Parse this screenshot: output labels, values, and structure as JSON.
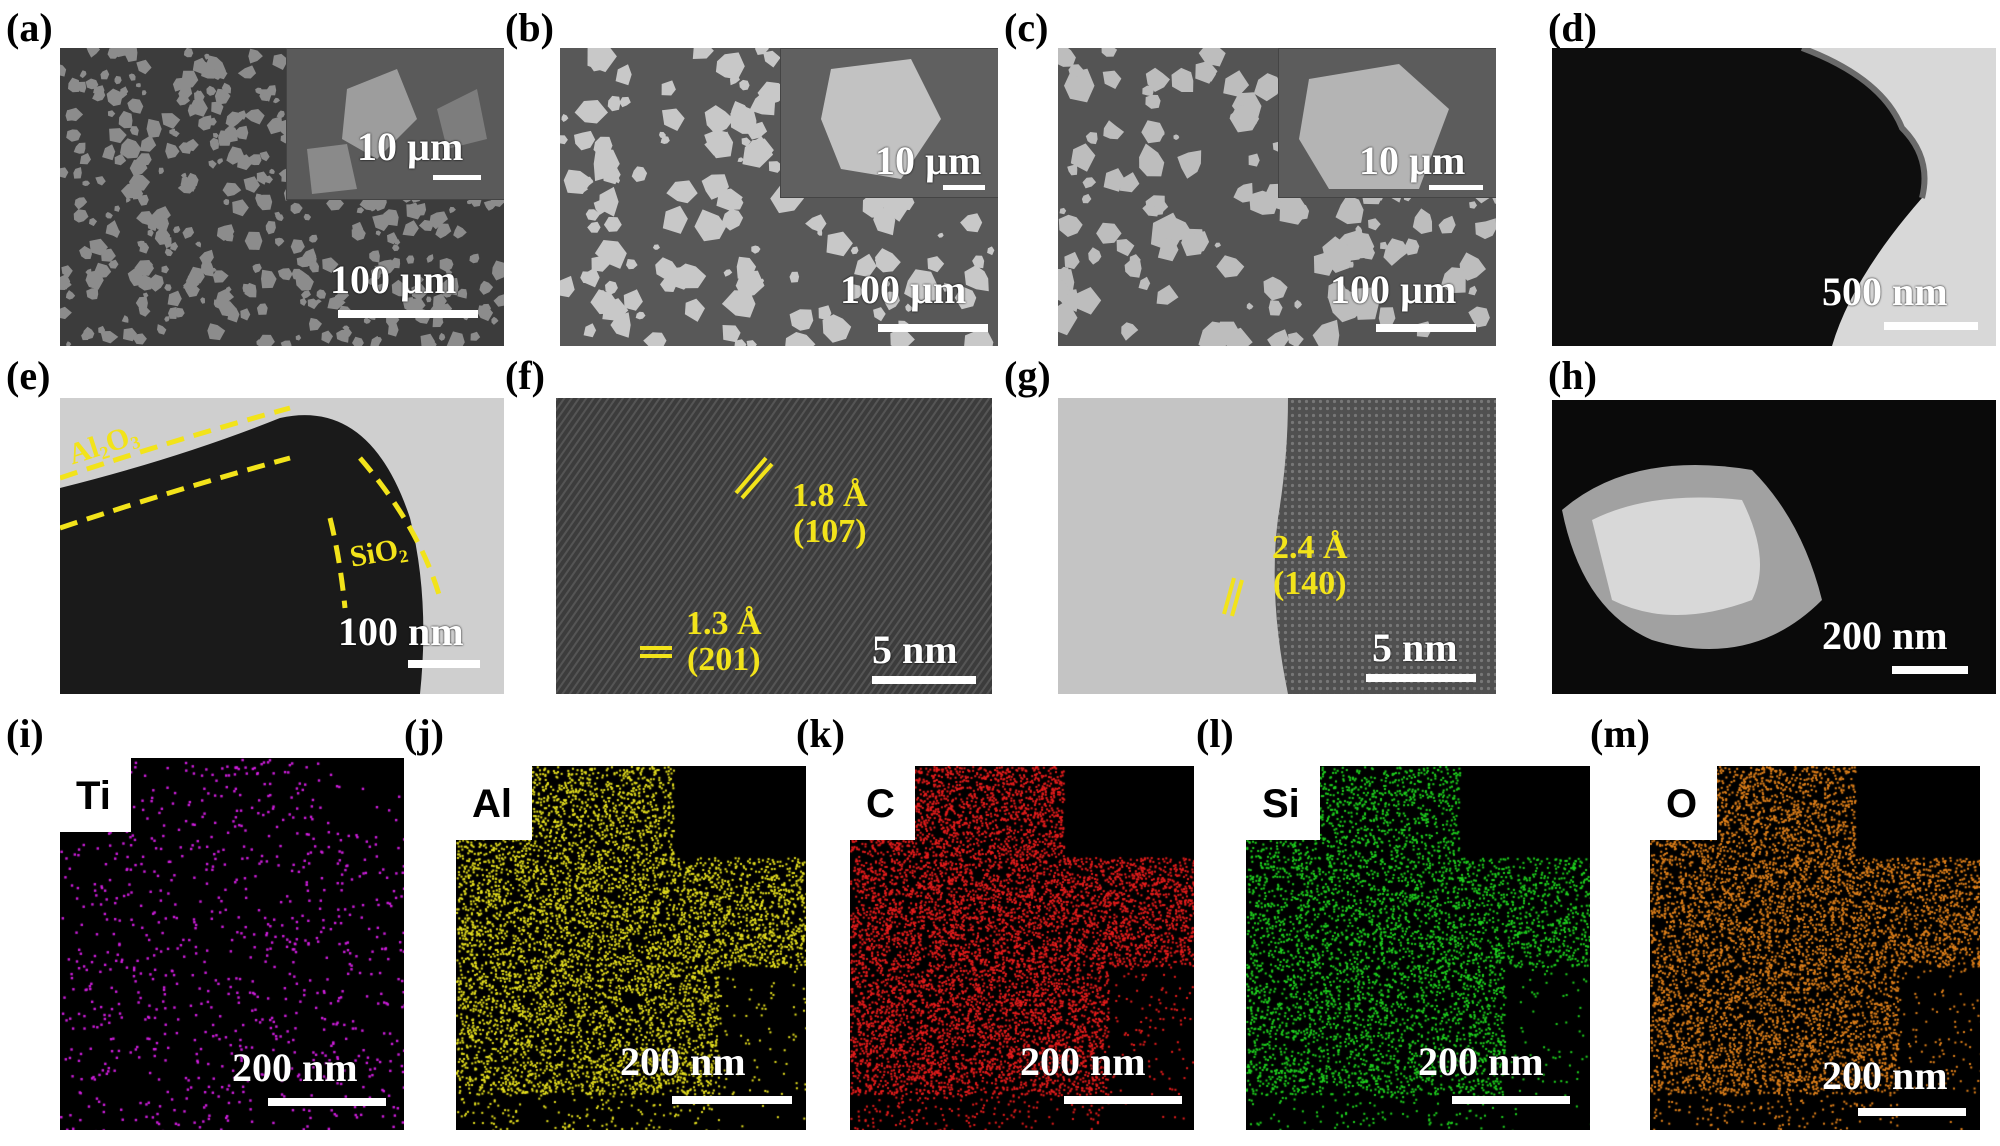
{
  "panels": {
    "a": {
      "label": "(a)",
      "scale": "100 µm",
      "inset_scale": "10 µm"
    },
    "b": {
      "label": "(b)",
      "scale": "100 µm",
      "inset_scale": "10 µm"
    },
    "c": {
      "label": "(c)",
      "scale": "100 µm",
      "inset_scale": "10 µm"
    },
    "d": {
      "label": "(d)",
      "scale": "500 nm"
    },
    "e": {
      "label": "(e)",
      "scale": "100 nm",
      "layer1": "Al",
      "layer1_sub": "2",
      "layer1_tail": "O",
      "layer1_sub2": "3",
      "layer2": "SiO",
      "layer2_sub": "2"
    },
    "f": {
      "label": "(f)",
      "scale": "5 nm",
      "fringe1_d": "1.8 Å",
      "fringe1_hkl": "(107)",
      "fringe2_d": "1.3 Å",
      "fringe2_hkl": "(201)"
    },
    "g": {
      "label": "(g)",
      "scale": "5 nm",
      "fringe1_d": "2.4 Å",
      "fringe1_hkl": "(140)"
    },
    "h": {
      "label": "(h)",
      "scale": "200 nm"
    },
    "i": {
      "label": "(i)",
      "scale": "200 nm",
      "element": "Ti",
      "color": "#d21ee0"
    },
    "j": {
      "label": "(j)",
      "scale": "200 nm",
      "element": "Al",
      "color": "#e6e01e"
    },
    "k": {
      "label": "(k)",
      "scale": "200 nm",
      "element": "C",
      "color": "#e81c1c"
    },
    "l": {
      "label": "(l)",
      "scale": "200 nm",
      "element": "Si",
      "color": "#1ed21e"
    },
    "m": {
      "label": "(m)",
      "scale": "200 nm",
      "element": "O",
      "color": "#e0801a"
    }
  }
}
